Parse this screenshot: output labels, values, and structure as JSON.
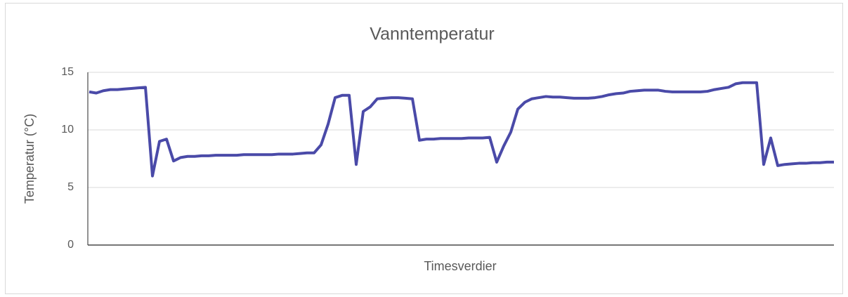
{
  "chart_data": {
    "type": "line",
    "title": "Vanntemperatur",
    "x_label": "Timesverdier",
    "y_label": "Temperatur (°C)",
    "color": "#4a4aa8",
    "ylim": [
      0,
      15
    ],
    "yticks": [
      0,
      5,
      10,
      15
    ],
    "grid": true,
    "values": [
      13.3,
      13.2,
      13.4,
      13.5,
      13.5,
      13.55,
      13.6,
      13.65,
      13.7,
      6.0,
      9.0,
      9.2,
      7.3,
      7.6,
      7.7,
      7.7,
      7.75,
      7.75,
      7.8,
      7.8,
      7.8,
      7.8,
      7.85,
      7.85,
      7.85,
      7.85,
      7.85,
      7.9,
      7.9,
      7.9,
      7.95,
      8.0,
      8.0,
      8.7,
      10.5,
      12.8,
      13.0,
      13.0,
      7.0,
      11.6,
      12.0,
      12.7,
      12.75,
      12.8,
      12.8,
      12.75,
      12.7,
      9.1,
      9.2,
      9.2,
      9.25,
      9.25,
      9.25,
      9.25,
      9.3,
      9.3,
      9.3,
      9.35,
      7.2,
      8.6,
      9.8,
      11.8,
      12.4,
      12.7,
      12.8,
      12.9,
      12.85,
      12.85,
      12.8,
      12.75,
      12.75,
      12.75,
      12.8,
      12.9,
      13.05,
      13.15,
      13.2,
      13.35,
      13.4,
      13.45,
      13.45,
      13.45,
      13.35,
      13.3,
      13.3,
      13.3,
      13.3,
      13.3,
      13.35,
      13.5,
      13.6,
      13.7,
      14.0,
      14.1,
      14.1,
      14.1,
      7.0,
      9.3,
      6.9,
      7.0,
      7.05,
      7.1,
      7.1,
      7.15,
      7.15,
      7.2,
      7.2
    ]
  }
}
